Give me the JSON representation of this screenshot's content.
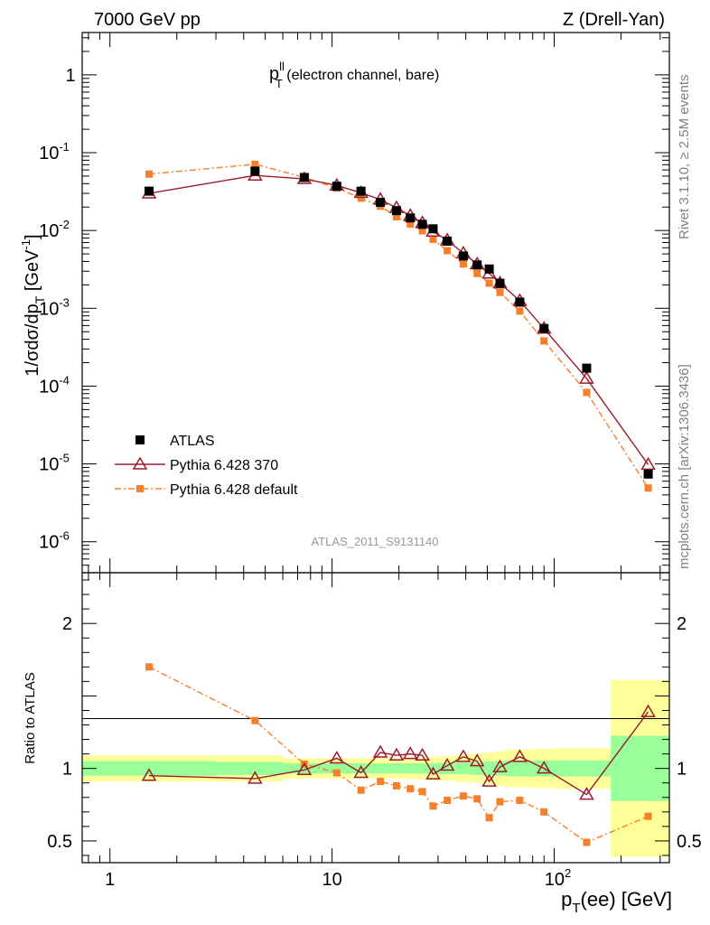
{
  "chart_data": {
    "type": "scatter",
    "header_left": "7000 GeV pp",
    "header_right": "Z (Drell-Yan)",
    "plot_title": {
      "main": "p",
      "sup": "ll",
      "sub": "T",
      "rest": " (electron channel, bare)"
    },
    "ylabel_main": {
      "a": "1/σdσ/dp",
      "sub": "T",
      "b": " [GeV",
      "sup": "-1",
      "c": "]"
    },
    "ylabel_ratio": "Ratio to ATLAS",
    "xlabel": {
      "a": "p",
      "sub": "T",
      "b": "(ee) [GeV]"
    },
    "analysis_id": "ATLAS_2011_S9131140",
    "side_note_top": "Rivet 3.1.10, ≥ 2.5M events",
    "side_note_bottom": "mcplots.cern.ch [arXiv:1306.3436]",
    "x_scale": "log",
    "xlim": [
      0.75,
      330
    ],
    "ylim_main": [
      4e-07,
      3.5
    ],
    "ylim_ratio": [
      0.35,
      2.35
    ],
    "x_ticks": [
      {
        "value": 1,
        "label": "1"
      },
      {
        "value": 10,
        "label": "10"
      },
      {
        "value": 100,
        "label": "10",
        "sup": "2"
      }
    ],
    "y_ticks_main": [
      {
        "value": 1,
        "label": "1"
      },
      {
        "value": 0.1,
        "label": "10",
        "sup": "-1"
      },
      {
        "value": 0.01,
        "label": "10",
        "sup": "-2"
      },
      {
        "value": 0.001,
        "label": "10",
        "sup": "-3"
      },
      {
        "value": 0.0001,
        "label": "10",
        "sup": "-4"
      },
      {
        "value": 1e-05,
        "label": "10",
        "sup": "-5"
      },
      {
        "value": 1e-06,
        "label": "10",
        "sup": "-6"
      }
    ],
    "y_ticks_ratio": [
      {
        "value": 2,
        "label": "2"
      },
      {
        "value": 1,
        "label": "1"
      },
      {
        "value": 0.5,
        "label": "0.5"
      }
    ],
    "legend_position": "bottom-left",
    "bin_edges": [
      0,
      3,
      6,
      9,
      12,
      15,
      18,
      21,
      24,
      27,
      30,
      36,
      42,
      48,
      54,
      60,
      80,
      100,
      180,
      350
    ],
    "x": [
      1.5,
      4.5,
      7.5,
      10.5,
      13.5,
      16.5,
      19.5,
      22.5,
      25.5,
      28.5,
      33,
      39,
      45,
      51,
      57,
      70,
      90,
      140,
      265
    ],
    "series": [
      {
        "name": "ATLAS",
        "marker": "square",
        "color": "#000000",
        "values": [
          0.032,
          0.058,
          0.048,
          0.037,
          0.032,
          0.023,
          0.018,
          0.0145,
          0.012,
          0.0105,
          0.0073,
          0.0047,
          0.0036,
          0.0032,
          0.0021,
          0.0012,
          0.00055,
          0.00017,
          7.4e-06
        ]
      },
      {
        "name": "Pythia 6.428 370",
        "marker": "triangle-open",
        "color": "#9b1c2c",
        "values": [
          0.03,
          0.051,
          0.046,
          0.038,
          0.0305,
          0.025,
          0.0195,
          0.0155,
          0.0125,
          0.0097,
          0.0075,
          0.0051,
          0.0037,
          0.0028,
          0.0021,
          0.00125,
          0.00055,
          0.000125,
          9.8e-06
        ],
        "ratio": [
          0.95,
          0.93,
          0.99,
          1.07,
          0.97,
          1.11,
          1.09,
          1.1,
          1.09,
          0.96,
          1.02,
          1.08,
          1.05,
          0.91,
          1.01,
          1.08,
          1.0,
          0.82,
          1.39
        ]
      },
      {
        "name": "Pythia 6.428 default",
        "marker": "square-small",
        "color": "#f57f2a",
        "values": [
          0.053,
          0.071,
          0.048,
          0.035,
          0.026,
          0.0205,
          0.015,
          0.0121,
          0.0099,
          0.0077,
          0.0055,
          0.0037,
          0.0028,
          0.0021,
          0.0016,
          0.00092,
          0.00038,
          8.3e-05,
          4.9e-06
        ],
        "ratio": [
          1.7,
          1.33,
          1.03,
          0.97,
          0.85,
          0.91,
          0.88,
          0.86,
          0.84,
          0.74,
          0.78,
          0.81,
          0.79,
          0.66,
          0.77,
          0.78,
          0.7,
          0.49,
          0.67
        ]
      }
    ],
    "ratio_bands": {
      "inner_halfwidth": [
        0.05,
        0.045,
        0.035,
        0.035,
        0.035,
        0.035,
        0.035,
        0.035,
        0.035,
        0.035,
        0.04,
        0.04,
        0.045,
        0.05,
        0.05,
        0.055,
        0.055,
        0.055,
        0.225
      ],
      "outer_halfwidth": [
        0.09,
        0.09,
        0.07,
        0.07,
        0.07,
        0.07,
        0.07,
        0.075,
        0.075,
        0.08,
        0.085,
        0.095,
        0.1,
        0.11,
        0.12,
        0.13,
        0.135,
        0.14,
        0.61
      ],
      "inner_color": "#99ff99",
      "outer_color": "#ffff99"
    }
  }
}
